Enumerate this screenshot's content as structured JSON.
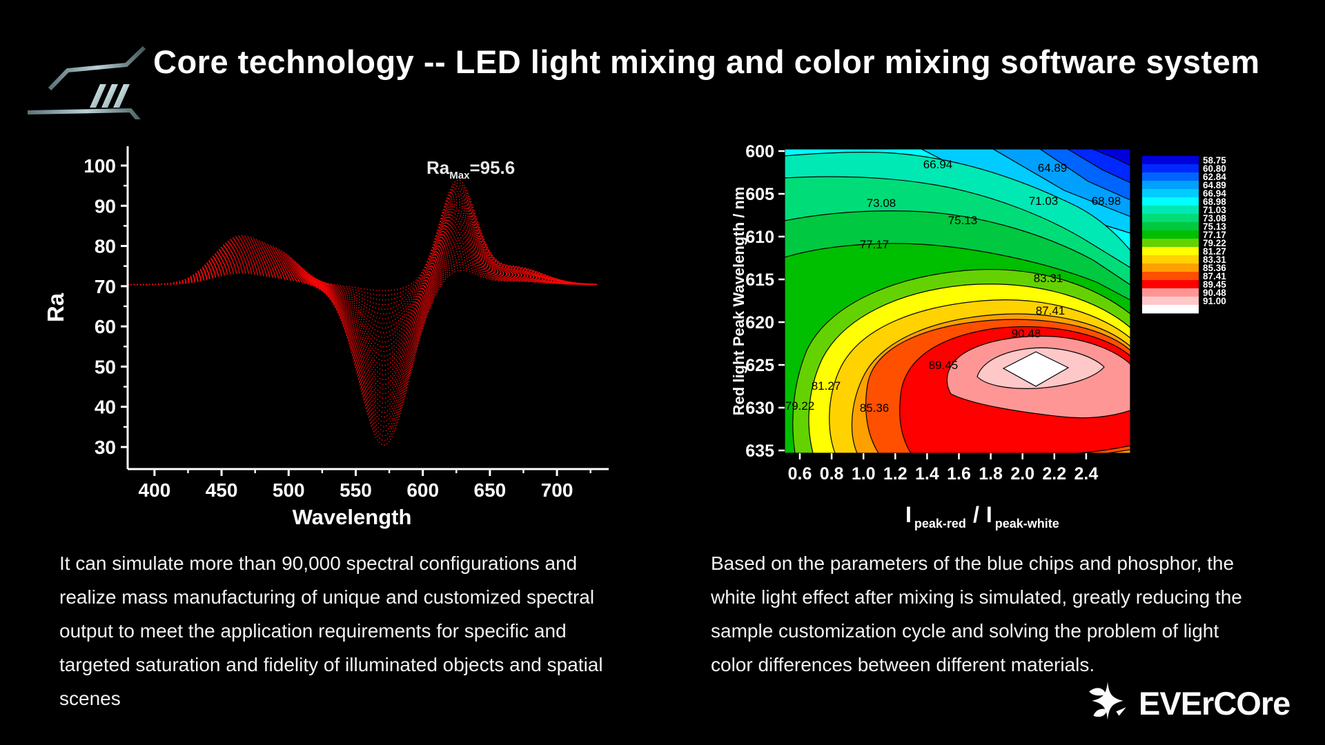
{
  "title": "Core technology -- LED light mixing and color mixing software system",
  "brand": {
    "name": "EVErCOre",
    "icon": "butterfly-star-icon"
  },
  "header_logo": "angular-stripes-logo",
  "captions": {
    "left": "It can simulate more than 90,000 spectral configurations and\nrealize mass manufacturing of unique and customized spectral\noutput to meet the application requirements for specific and\ntargeted saturation and fidelity of illuminated objects and spatial\nscenes",
    "right": "Based on the parameters of the blue chips and phosphor, the\nwhite light effect after mixing is simulated, greatly reducing the\nsample customization cycle and solving the problem of light\ncolor differences between different materials."
  },
  "chart_data": [
    {
      "type": "line",
      "title": "",
      "xlabel": "Wavelength",
      "ylabel": "Ra",
      "xlim": [
        380,
        735
      ],
      "ylim": [
        24,
        105
      ],
      "x_ticks": [
        "400",
        "450",
        "500",
        "550",
        "600",
        "650",
        "700"
      ],
      "y_ticks": [
        "100",
        "90",
        "80",
        "70",
        "60",
        "50",
        "40",
        "30"
      ],
      "annotation": {
        "prefix": "Ra",
        "sub": "Max",
        "suffix": "=95.6"
      },
      "ra_max": 95.6,
      "series_color": "#ff0606",
      "description": "family of ~34 dotted red spectral-fidelity curves",
      "curve_model": {
        "count": 34,
        "x_start": 380,
        "x_end": 732,
        "x_step": 2.5,
        "base": 70.4,
        "components": [
          {
            "kind": "peak",
            "center": 463,
            "width": 27,
            "amp_min": 2.8,
            "amp_max": 11.8
          },
          {
            "kind": "peak",
            "center": 497,
            "width": 20,
            "amp_min": 0.8,
            "amp_max": 5.5
          },
          {
            "kind": "dip",
            "center": 571,
            "width": 26,
            "amp_min": -40.0,
            "amp_max": -1.5
          },
          {
            "kind": "peak",
            "center": 626,
            "width": 19,
            "amp_min": 3.8,
            "amp_max": 25.4
          },
          {
            "kind": "peak",
            "center": 668,
            "width": 30,
            "amp_min": 0.8,
            "amp_max": 4.4
          }
        ],
        "envelope": {
          "start": [
            380,
            70.5
          ],
          "blue_bump": [
            463,
            82.5
          ],
          "dip_min": [
            571,
            30.4
          ],
          "red_peak_max": [
            626,
            95.6
          ],
          "end": [
            730,
            70.5
          ]
        }
      }
    },
    {
      "type": "heatmap",
      "subtype": "filled-contour",
      "ylabel": "Red light Peak Wavelength / nm",
      "xlabel_parts": {
        "i1": "I",
        "sub1": "peak-red",
        "slash": "/",
        "i2": "I",
        "sub2": "peak-white"
      },
      "x_ticks": [
        "0.6",
        "0.8",
        "1.0",
        "1.2",
        "1.4",
        "1.6",
        "1.8",
        "2.0",
        "2.2",
        "2.4"
      ],
      "y_ticks": [
        "600",
        "605",
        "610",
        "615",
        "620",
        "625",
        "630",
        "635"
      ],
      "xlim": [
        0.45,
        2.65
      ],
      "ylim_top_to_bottom": [
        600,
        635
      ],
      "levels": [
        "58.75",
        "60.80",
        "62.84",
        "64.89",
        "66.94",
        "68.98",
        "71.03",
        "73.08",
        "75.13",
        "77.17",
        "79.22",
        "81.27",
        "83.31",
        "85.36",
        "87.41",
        "89.45",
        "90.48",
        "91.00"
      ],
      "colorbar_colors": [
        "#0000D8",
        "#0028FF",
        "#0064FF",
        "#00A0FF",
        "#00CCFF",
        "#00FFFF",
        "#00E8B4",
        "#00DC78",
        "#00C840",
        "#00BE00",
        "#64D200",
        "#FFFF00",
        "#FFD200",
        "#FFA000",
        "#FF5000",
        "#FF0000",
        "#FF9696",
        "#FFC8C8",
        "#FFFFFF"
      ],
      "peak": {
        "x": 2.0,
        "y_nm": 625,
        "value_approx": 91.5
      },
      "min_corner": {
        "position": "top-right",
        "value_approx": 58.75
      },
      "contour_labels": [
        {
          "value": "66.94",
          "x": 222,
          "y": 22
        },
        {
          "value": "64.89",
          "x": 388,
          "y": 27
        },
        {
          "value": "73.08",
          "x": 140,
          "y": 78
        },
        {
          "value": "71.03",
          "x": 375,
          "y": 75
        },
        {
          "value": "68.98",
          "x": 466,
          "y": 75
        },
        {
          "value": "75.13",
          "x": 258,
          "y": 103
        },
        {
          "value": "77.17",
          "x": 130,
          "y": 138
        },
        {
          "value": "83.31",
          "x": 382,
          "y": 187
        },
        {
          "value": "87.41",
          "x": 385,
          "y": 234
        },
        {
          "value": "90.48",
          "x": 350,
          "y": 267
        },
        {
          "value": "89.45",
          "x": 230,
          "y": 313
        },
        {
          "value": "81.27",
          "x": 60,
          "y": 343
        },
        {
          "value": "79.22",
          "x": 22,
          "y": 372
        },
        {
          "value": "85.36",
          "x": 130,
          "y": 375
        }
      ]
    }
  ]
}
